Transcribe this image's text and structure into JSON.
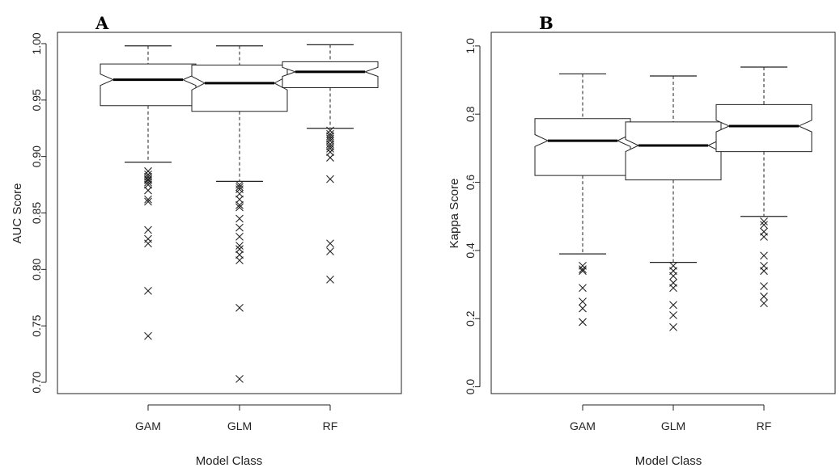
{
  "chart_data": [
    {
      "type": "boxplot",
      "panel_label": "A",
      "title": "",
      "xlabel": "Model Class",
      "ylabel": "AUC Score",
      "ylim": [
        0.69,
        1.01
      ],
      "yticks": [
        0.7,
        0.75,
        0.8,
        0.85,
        0.9,
        0.95,
        1.0
      ],
      "ytick_labels": [
        "0.70",
        "0.75",
        "0.80",
        "0.85",
        "0.90",
        "0.95",
        "1.00"
      ],
      "notched": true,
      "categories": [
        "GAM",
        "GLM",
        "RF"
      ],
      "boxes": [
        {
          "category": "GAM",
          "whisker_low": 0.895,
          "q1": 0.945,
          "median": 0.968,
          "q3": 0.982,
          "whisker_high": 0.998,
          "notch": [
            0.963,
            0.973
          ],
          "outliers": [
            0.887,
            0.884,
            0.882,
            0.88,
            0.879,
            0.877,
            0.875,
            0.87,
            0.862,
            0.86,
            0.835,
            0.827,
            0.823,
            0.781,
            0.741
          ]
        },
        {
          "category": "GLM",
          "whisker_low": 0.878,
          "q1": 0.94,
          "median": 0.965,
          "q3": 0.981,
          "whisker_high": 0.998,
          "notch": [
            0.959,
            0.971
          ],
          "outliers": [
            0.875,
            0.873,
            0.871,
            0.867,
            0.862,
            0.857,
            0.855,
            0.845,
            0.837,
            0.829,
            0.821,
            0.818,
            0.813,
            0.808,
            0.766,
            0.703
          ]
        },
        {
          "category": "RF",
          "whisker_low": 0.925,
          "q1": 0.961,
          "median": 0.975,
          "q3": 0.984,
          "whisker_high": 0.999,
          "notch": [
            0.971,
            0.979
          ],
          "outliers": [
            0.923,
            0.92,
            0.918,
            0.916,
            0.914,
            0.911,
            0.909,
            0.907,
            0.904,
            0.899,
            0.88,
            0.823,
            0.816,
            0.791
          ]
        }
      ]
    },
    {
      "type": "boxplot",
      "panel_label": "B",
      "title": "",
      "xlabel": "Model Class",
      "ylabel": "Kappa Score",
      "ylim": [
        -0.02,
        1.04
      ],
      "yticks": [
        0.0,
        0.2,
        0.4,
        0.6,
        0.8,
        1.0
      ],
      "ytick_labels": [
        "0.0",
        "0.2",
        "0.4",
        "0.6",
        "0.8",
        "1.0"
      ],
      "notched": true,
      "categories": [
        "GAM",
        "GLM",
        "RF"
      ],
      "boxes": [
        {
          "category": "GAM",
          "whisker_low": 0.39,
          "q1": 0.62,
          "median": 0.722,
          "q3": 0.787,
          "whisker_high": 0.918,
          "notch": [
            0.705,
            0.74
          ],
          "outliers": [
            0.355,
            0.345,
            0.34,
            0.29,
            0.25,
            0.23,
            0.19
          ]
        },
        {
          "category": "GLM",
          "whisker_low": 0.365,
          "q1": 0.607,
          "median": 0.708,
          "q3": 0.777,
          "whisker_high": 0.912,
          "notch": [
            0.69,
            0.726
          ],
          "outliers": [
            0.355,
            0.34,
            0.325,
            0.305,
            0.29,
            0.24,
            0.21,
            0.175
          ]
        },
        {
          "category": "RF",
          "whisker_low": 0.5,
          "q1": 0.69,
          "median": 0.765,
          "q3": 0.828,
          "whisker_high": 0.938,
          "notch": [
            0.748,
            0.782
          ],
          "outliers": [
            0.485,
            0.475,
            0.455,
            0.44,
            0.385,
            0.355,
            0.34,
            0.295,
            0.265,
            0.245
          ]
        }
      ]
    }
  ]
}
